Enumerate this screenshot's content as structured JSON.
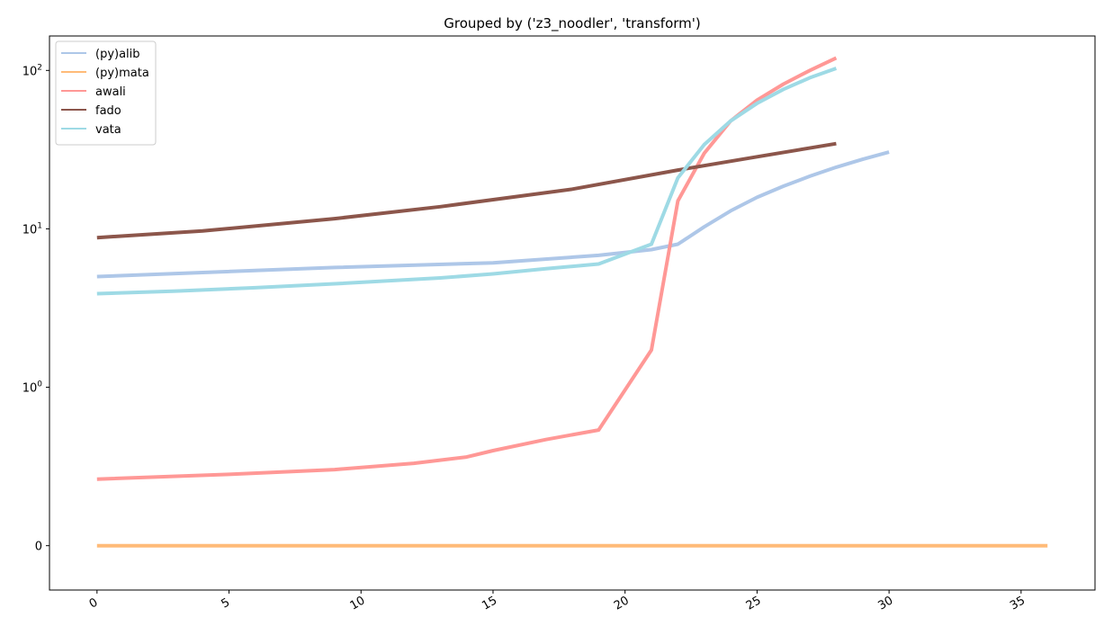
{
  "chart_data": {
    "type": "line",
    "title": "Grouped by ('z3_noodler', 'transform')",
    "xlabel": "",
    "ylabel": "",
    "xlim": [
      -1.8,
      37.8
    ],
    "xticks": [
      0,
      5,
      10,
      15,
      20,
      25,
      30,
      35
    ],
    "yscale": "symlog",
    "ylim": [
      -0.28,
      165
    ],
    "yticks": [
      {
        "value": 0,
        "label": "0"
      },
      {
        "value": 1,
        "label": "10",
        "exp": "0"
      },
      {
        "value": 10,
        "label": "10",
        "exp": "1"
      },
      {
        "value": 100,
        "label": "10",
        "exp": "2"
      }
    ],
    "grid": false,
    "legend_position": "top-left",
    "series": [
      {
        "name": "(py)alib",
        "color": "#aec7e8",
        "x": [
          0,
          4,
          9,
          15,
          19,
          21,
          22,
          23,
          24,
          25,
          26,
          27,
          28,
          29,
          30
        ],
        "y": [
          5.0,
          5.3,
          5.7,
          6.1,
          6.8,
          7.4,
          8.0,
          10.3,
          13.0,
          15.8,
          18.6,
          21.5,
          24.5,
          27.5,
          30.5
        ]
      },
      {
        "name": "(py)mata",
        "color": "#ffbb78",
        "x": [
          0,
          36
        ],
        "y": [
          0,
          0
        ]
      },
      {
        "name": "awali",
        "color": "#ff9896",
        "x": [
          0,
          5,
          9,
          12,
          14,
          15,
          17,
          19,
          21,
          22,
          23,
          24,
          25,
          26,
          27,
          28
        ],
        "y": [
          0.42,
          0.45,
          0.48,
          0.52,
          0.56,
          0.6,
          0.67,
          0.73,
          1.72,
          15.0,
          30.0,
          48.0,
          65.0,
          82.0,
          100.0,
          120.0
        ]
      },
      {
        "name": "fado",
        "color": "#8c564b",
        "x": [
          0,
          4,
          9,
          13,
          18,
          22,
          25,
          28
        ],
        "y": [
          8.8,
          9.7,
          11.6,
          13.8,
          17.8,
          23.5,
          28.5,
          34.5
        ]
      },
      {
        "name": "vata",
        "color": "#9edae5",
        "x": [
          0,
          3,
          6,
          9,
          13,
          15,
          17,
          19,
          21,
          22,
          23,
          24,
          25,
          26,
          27,
          28
        ],
        "y": [
          3.9,
          4.05,
          4.25,
          4.5,
          4.9,
          5.2,
          5.6,
          6.0,
          8.0,
          21.0,
          34.0,
          48.0,
          62.0,
          76.0,
          90.0,
          103.0
        ]
      }
    ]
  }
}
